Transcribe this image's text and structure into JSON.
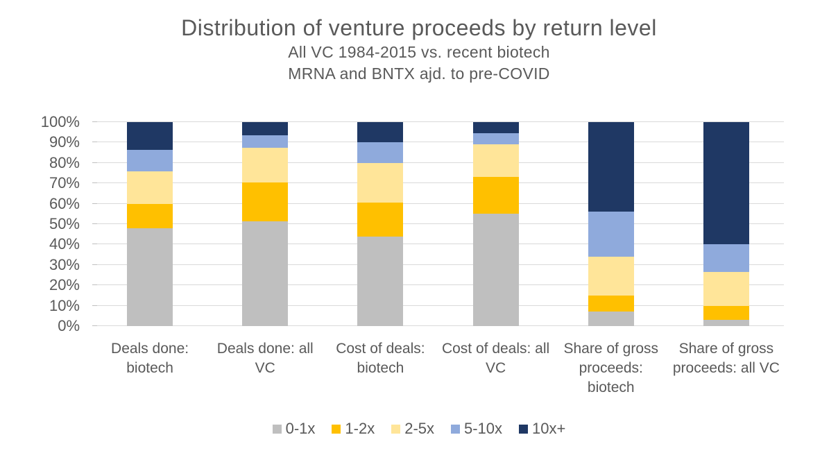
{
  "title": "Distribution of venture proceeds by return level",
  "subtitle_line1": "All VC 1984-2015 vs. recent biotech",
  "subtitle_line2": "MRNA and BNTX ajd. to pre-COVID",
  "colors": {
    "text": "#595959",
    "gridline": "#d9d9d9",
    "background": "#ffffff"
  },
  "chart_data": {
    "type": "bar",
    "stacked": true,
    "units": "percent",
    "title": "Distribution of venture proceeds by return level",
    "subtitle": "All VC 1984-2015 vs. recent biotech — MRNA and BNTX ajd. to pre-COVID",
    "xlabel": "",
    "ylabel": "",
    "ylim": [
      0,
      100
    ],
    "grid": true,
    "legend_position": "bottom",
    "yticks": [
      "0%",
      "10%",
      "20%",
      "30%",
      "40%",
      "50%",
      "60%",
      "70%",
      "80%",
      "90%",
      "100%"
    ],
    "categories": [
      "Deals done: biotech",
      "Deals done: all VC",
      "Cost of deals: biotech",
      "Cost of deals: all VC",
      "Share of gross proceeds: biotech",
      "Share of gross proceeds: all VC"
    ],
    "series": [
      {
        "name": "0-1x",
        "color": "#bfbfbf",
        "values": [
          48,
          51.5,
          44,
          55,
          7,
          3
        ]
      },
      {
        "name": "1-2x",
        "color": "#ffc000",
        "values": [
          12,
          19,
          16.5,
          18,
          8,
          7
        ]
      },
      {
        "name": "2-5x",
        "color": "#ffe599",
        "values": [
          16,
          17,
          19.5,
          16,
          19,
          16.5
        ]
      },
      {
        "name": "5-10x",
        "color": "#8faadc",
        "values": [
          10.5,
          6,
          10,
          5.5,
          22,
          13.5
        ]
      },
      {
        "name": "10x+",
        "color": "#1f3864",
        "values": [
          13.5,
          6.5,
          10,
          5.5,
          44,
          60
        ]
      }
    ]
  }
}
